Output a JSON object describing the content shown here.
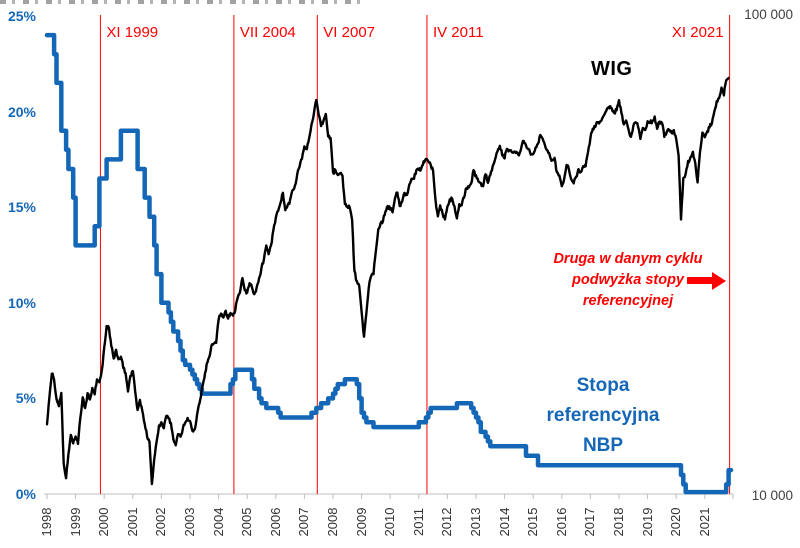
{
  "colors": {
    "wig_line": "#000000",
    "rate_line": "#1467B6",
    "rate_text": "#1467B6",
    "event_red": "#FF0000",
    "axis_gray": "#BFBFBF",
    "tick_text": "#333333",
    "right_tick_text": "#404040"
  },
  "chart_data": {
    "type": "line",
    "title": "",
    "x_range": [
      "1998-01",
      "2021-11"
    ],
    "x_axis": {
      "years": [
        "1998",
        "1999",
        "2000",
        "2001",
        "2002",
        "2003",
        "2004",
        "2005",
        "2006",
        "2007",
        "2008",
        "2009",
        "2010",
        "2011",
        "2012",
        "2013",
        "2014",
        "2015",
        "2016",
        "2017",
        "2018",
        "2019",
        "2020",
        "2021"
      ]
    },
    "left_axis": {
      "ticks": [
        "25%",
        "20%",
        "15%",
        "10%",
        "5%",
        "0%"
      ],
      "tick_values": [
        25,
        20,
        15,
        10,
        5,
        0
      ],
      "range_percent": [
        0,
        25
      ]
    },
    "right_axis": {
      "ticks": [
        "100 000",
        "10 000"
      ],
      "tick_values": [
        100000,
        10000
      ],
      "scale": "log",
      "range": [
        10000,
        100000
      ]
    },
    "labels": {
      "wig_series": "WIG",
      "rate_series_lines": [
        "Stopa",
        "referencyjna",
        "NBP"
      ]
    },
    "annotation": {
      "lines": [
        "Druga w danym cyklu",
        "podwyżka stopy",
        "referencyjnej"
      ],
      "arrow_direction": "right"
    },
    "events": [
      {
        "label": "XI 1999",
        "month_index": 22,
        "label_side": "right"
      },
      {
        "label": "VII 2004",
        "month_index": 78,
        "label_side": "right"
      },
      {
        "label": "VI 2007",
        "month_index": 113,
        "label_side": "right"
      },
      {
        "label": "IV 2011",
        "month_index": 159,
        "label_side": "right"
      },
      {
        "label": "XI 2021",
        "month_index": 286,
        "label_side": "left"
      }
    ],
    "series": [
      {
        "name": "WIG",
        "axis": "right",
        "scale": "log",
        "style": "line",
        "unit": "index points (thousands)",
        "monthly_values": [
          14.0,
          15.9,
          17.9,
          17.3,
          15.8,
          15.3,
          16.3,
          11.6,
          10.8,
          12.1,
          13.3,
          12.8,
          13.2,
          12.7,
          14.5,
          15.9,
          15.1,
          16.2,
          15.8,
          16.6,
          16.2,
          17.3,
          17.1,
          18.1,
          20.2,
          22.4,
          22.2,
          20.4,
          19.2,
          20.0,
          19.1,
          19.3,
          18.4,
          17.9,
          16.4,
          17.7,
          18.1,
          16.4,
          15.0,
          15.7,
          14.9,
          14.0,
          13.2,
          12.9,
          10.5,
          11.8,
          12.9,
          13.9,
          14.1,
          13.7,
          14.6,
          14.4,
          14.1,
          13.0,
          12.6,
          13.4,
          13.2,
          13.7,
          14.1,
          14.4,
          14.2,
          13.6,
          13.7,
          14.7,
          15.5,
          16.6,
          17.4,
          18.7,
          19.3,
          20.5,
          20.7,
          20.8,
          23.2,
          23.9,
          23.5,
          24.2,
          23.3,
          23.9,
          23.7,
          24.3,
          25.8,
          26.5,
          28.2,
          26.6,
          26.4,
          27.7,
          27.0,
          26.1,
          27.1,
          28.2,
          29.7,
          31.0,
          33.1,
          31.8,
          33.0,
          35.6,
          37.8,
          39.2,
          40.6,
          42.6,
          39.2,
          40.2,
          41.1,
          43.2,
          44.1,
          46.7,
          48.4,
          50.4,
          53.2,
          52.8,
          55.5,
          59.5,
          62.5,
          66.5,
          62.0,
          58.8,
          60.4,
          62.3,
          56.0,
          55.6,
          47.0,
          47.6,
          46.4,
          46.9,
          46.3,
          40.4,
          40.0,
          39.9,
          37.4,
          29.3,
          27.8,
          27.2,
          24.0,
          21.3,
          24.0,
          27.0,
          28.5,
          28.9,
          32.3,
          35.9,
          36.9,
          37.3,
          38.9,
          39.9,
          39.5,
          38.8,
          41.6,
          42.8,
          40.1,
          40.8,
          42.5,
          42.3,
          44.3,
          45.8,
          45.7,
          47.5,
          47.7,
          47.9,
          49.6,
          50.3,
          49.7,
          48.9,
          47.3,
          41.2,
          38.0,
          40.1,
          38.6,
          37.6,
          40.1,
          41.4,
          41.3,
          40.0,
          37.8,
          40.3,
          40.2,
          41.8,
          43.7,
          43.9,
          44.6,
          47.5,
          46.3,
          45.2,
          44.7,
          43.9,
          46.8,
          44.8,
          46.5,
          48.5,
          50.3,
          52.0,
          53.5,
          51.3,
          50.4,
          52.9,
          52.4,
          52.0,
          52.2,
          51.9,
          51.0,
          53.1,
          54.9,
          53.6,
          52.8,
          51.4,
          51.6,
          53.2,
          54.1,
          56.4,
          55.2,
          53.3,
          52.3,
          50.9,
          49.8,
          50.3,
          47.0,
          46.5,
          44.0,
          45.5,
          49.0,
          47.8,
          45.5,
          44.7,
          46.1,
          47.8,
          47.1,
          48.3,
          48.6,
          51.8,
          55.6,
          58.3,
          58.7,
          60.0,
          60.2,
          61.0,
          62.5,
          64.3,
          64.3,
          64.3,
          62.6,
          63.7,
          66.6,
          62.8,
          59.3,
          60.3,
          57.8,
          56.0,
          58.9,
          60.0,
          58.8,
          55.3,
          58.1,
          57.7,
          60.3,
          59.9,
          60.2,
          61.6,
          57.9,
          60.2,
          59.9,
          56.0,
          56.9,
          57.8,
          56.8,
          57.8,
          55.5,
          50.9,
          37.5,
          45.7,
          46.8,
          49.6,
          50.5,
          52.0,
          49.2,
          44.9,
          51.9,
          57.0,
          55.6,
          57.2,
          58.6,
          59.8,
          63.1,
          66.1,
          67.3,
          70.6,
          68.4,
          73.6,
          74.2
        ]
      },
      {
        "name": "Stopa referencyjna NBP",
        "axis": "left",
        "scale": "linear",
        "style": "step",
        "unit": "percent",
        "monthly_values": [
          24,
          24,
          24,
          23,
          21.5,
          21.5,
          19,
          19,
          18,
          17,
          17,
          15.5,
          13,
          13,
          13,
          13,
          13,
          13,
          13,
          13,
          14,
          14,
          16.5,
          16.5,
          16.5,
          17.5,
          17.5,
          17.5,
          17.5,
          17.5,
          17.5,
          19,
          19,
          19,
          19,
          19,
          19,
          19,
          17,
          17,
          17,
          15.5,
          15.5,
          14.5,
          14.5,
          13,
          11.5,
          11.5,
          10,
          10,
          10,
          9.5,
          9,
          8.5,
          8.5,
          8,
          7.5,
          7,
          6.75,
          6.75,
          6.5,
          6.25,
          6,
          5.75,
          5.5,
          5.25,
          5.25,
          5.25,
          5.25,
          5.25,
          5.25,
          5.25,
          5.25,
          5.25,
          5.25,
          5.25,
          5.25,
          5.75,
          6,
          6.5,
          6.5,
          6.5,
          6.5,
          6.5,
          6.5,
          6.5,
          6,
          5.5,
          5.5,
          5,
          4.75,
          4.75,
          4.5,
          4.5,
          4.5,
          4.5,
          4.5,
          4.25,
          4,
          4,
          4,
          4,
          4,
          4,
          4,
          4,
          4,
          4,
          4,
          4,
          4,
          4.25,
          4.25,
          4.5,
          4.5,
          4.75,
          4.75,
          4.75,
          5,
          5,
          5.25,
          5.5,
          5.75,
          5.75,
          5.75,
          6,
          6,
          6,
          6,
          6,
          5.75,
          5,
          4.25,
          4,
          3.75,
          3.75,
          3.75,
          3.5,
          3.5,
          3.5,
          3.5,
          3.5,
          3.5,
          3.5,
          3.5,
          3.5,
          3.5,
          3.5,
          3.5,
          3.5,
          3.5,
          3.5,
          3.5,
          3.5,
          3.5,
          3.5,
          3.75,
          3.75,
          3.75,
          4,
          4.25,
          4.5,
          4.5,
          4.5,
          4.5,
          4.5,
          4.5,
          4.5,
          4.5,
          4.5,
          4.5,
          4.5,
          4.75,
          4.75,
          4.75,
          4.75,
          4.75,
          4.75,
          4.5,
          4.25,
          4,
          3.75,
          3.25,
          3.25,
          3,
          2.75,
          2.5,
          2.5,
          2.5,
          2.5,
          2.5,
          2.5,
          2.5,
          2.5,
          2.5,
          2.5,
          2.5,
          2.5,
          2.5,
          2.5,
          2.5,
          2,
          2,
          2,
          2,
          2,
          1.5,
          1.5,
          1.5,
          1.5,
          1.5,
          1.5,
          1.5,
          1.5,
          1.5,
          1.5,
          1.5,
          1.5,
          1.5,
          1.5,
          1.5,
          1.5,
          1.5,
          1.5,
          1.5,
          1.5,
          1.5,
          1.5,
          1.5,
          1.5,
          1.5,
          1.5,
          1.5,
          1.5,
          1.5,
          1.5,
          1.5,
          1.5,
          1.5,
          1.5,
          1.5,
          1.5,
          1.5,
          1.5,
          1.5,
          1.5,
          1.5,
          1.5,
          1.5,
          1.5,
          1.5,
          1.5,
          1.5,
          1.5,
          1.5,
          1.5,
          1.5,
          1.5,
          1.5,
          1.5,
          1.5,
          1.5,
          1.5,
          1.5,
          1.5,
          1.5,
          1,
          0.5,
          0.1,
          0.1,
          0.1,
          0.1,
          0.1,
          0.1,
          0.1,
          0.1,
          0.1,
          0.1,
          0.1,
          0.1,
          0.1,
          0.1,
          0.1,
          0.1,
          0.1,
          0.5,
          1.25
        ]
      }
    ]
  }
}
